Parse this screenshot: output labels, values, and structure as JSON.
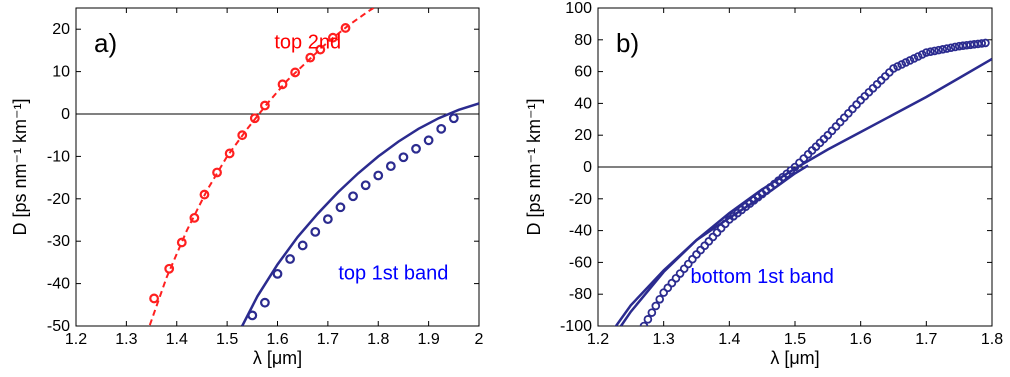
{
  "chart_data": [
    {
      "type": "line",
      "panel_label": "a)",
      "xlabel": "λ [μm]",
      "ylabel": "D [ps nm⁻¹ km⁻¹]",
      "xlim": [
        1.2,
        2.0
      ],
      "ylim": [
        -50,
        25
      ],
      "xticks": [
        "1.2",
        "1.3",
        "1.4",
        "1.5",
        "1.6",
        "1.7",
        "1.8",
        "1.9",
        "2"
      ],
      "yticks": [
        "-50",
        "-40",
        "-30",
        "-20",
        "-10",
        "0",
        "10",
        "20"
      ],
      "zero_line": true,
      "grid": false,
      "annotations": [
        {
          "text": "top 2nd",
          "x": 1.66,
          "y": 15.5,
          "color": "#ff0000"
        },
        {
          "text": "top 1st band",
          "x": 1.83,
          "y": -39,
          "color": "#0000ff"
        }
      ],
      "series": [
        {
          "color": "#ff2020",
          "style": "dashed",
          "x": [
            1.34,
            1.38,
            1.42,
            1.46,
            1.5,
            1.54,
            1.58,
            1.62,
            1.66,
            1.7,
            1.74,
            1.78,
            1.82
          ],
          "y": [
            -52,
            -38.5,
            -27.5,
            -18,
            -10,
            -3.5,
            2.5,
            8,
            12.5,
            17,
            20.8,
            24.2,
            27.2
          ],
          "marker_x": [
            1.355,
            1.385,
            1.41,
            1.435,
            1.455,
            1.48,
            1.505,
            1.53,
            1.555,
            1.575,
            1.61,
            1.635,
            1.665,
            1.685,
            1.71,
            1.735
          ],
          "marker_y": [
            -43.5,
            -36.5,
            -30.3,
            -24.5,
            -19,
            -13.8,
            -9.3,
            -5,
            -1,
            2,
            7,
            9.8,
            13.3,
            15.2,
            18,
            20.3
          ]
        },
        {
          "color": "#2b2b8f",
          "style": "solid",
          "x": [
            1.53,
            1.56,
            1.6,
            1.64,
            1.68,
            1.72,
            1.76,
            1.8,
            1.84,
            1.88,
            1.92,
            1.96,
            2.0
          ],
          "y": [
            -50,
            -43,
            -35.5,
            -29,
            -23.5,
            -18.5,
            -14,
            -10,
            -6.5,
            -3.5,
            -1,
            1,
            2.5
          ],
          "marker_x": [
            1.55,
            1.575,
            1.6,
            1.625,
            1.65,
            1.675,
            1.7,
            1.725,
            1.75,
            1.775,
            1.8,
            1.825,
            1.85,
            1.875,
            1.9,
            1.925,
            1.95
          ],
          "marker_y": [
            -47.5,
            -44.5,
            -37.7,
            -34.2,
            -31,
            -27.8,
            -24.8,
            -22,
            -19.4,
            -16.8,
            -14.5,
            -12.3,
            -10.2,
            -8.2,
            -6.2,
            -3.5,
            -1.0
          ]
        }
      ]
    },
    {
      "type": "line",
      "panel_label": "b)",
      "xlabel": "λ [μm]",
      "ylabel": "D [ps nm⁻¹ km⁻¹]",
      "xlim": [
        1.2,
        1.8
      ],
      "ylim": [
        -100,
        100
      ],
      "xticks": [
        "1.2",
        "1.3",
        "1.4",
        "1.5",
        "1.6",
        "1.7",
        "1.8"
      ],
      "yticks": [
        "-100",
        "-80",
        "-60",
        "-40",
        "-20",
        "0",
        "20",
        "40",
        "60",
        "80",
        "100"
      ],
      "zero_line": true,
      "grid": false,
      "annotations": [
        {
          "text": "bottom 1st band",
          "x": 1.45,
          "y": -73,
          "color": "#0000ff"
        }
      ],
      "series": [
        {
          "color": "#2b2b8f",
          "style": "markers",
          "marker_x": [
            1.27,
            1.3,
            1.35,
            1.4,
            1.45,
            1.5,
            1.52,
            1.55,
            1.6,
            1.65,
            1.7,
            1.75,
            1.79
          ],
          "marker_y": [
            -100,
            -79,
            -55,
            -33,
            -17,
            0,
            8,
            20,
            42,
            62,
            72,
            76,
            78
          ]
        },
        {
          "color": "#2b2b8f",
          "style": "solid",
          "x": [
            1.235,
            1.25,
            1.3,
            1.35,
            1.4,
            1.45,
            1.5,
            1.55,
            1.6,
            1.65,
            1.7,
            1.75,
            1.8
          ],
          "y": [
            -100,
            -91,
            -66,
            -46,
            -29,
            -14,
            -1,
            11,
            22,
            33,
            44,
            56,
            68
          ]
        },
        {
          "color": "#2b2b8f",
          "style": "solid",
          "x": [
            1.21,
            1.25,
            1.3,
            1.35,
            1.4,
            1.43,
            1.46,
            1.48,
            1.5,
            1.52
          ],
          "y": [
            -110,
            -87,
            -65,
            -46,
            -32,
            -24,
            -16,
            -10,
            -4,
            1
          ]
        }
      ]
    }
  ]
}
